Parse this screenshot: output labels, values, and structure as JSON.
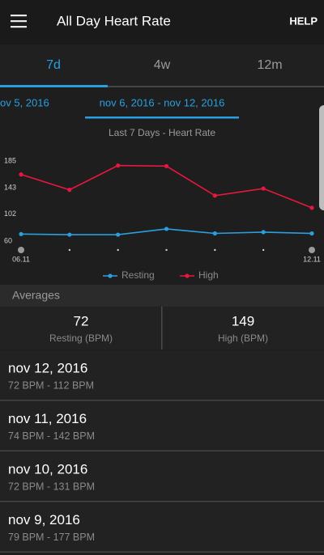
{
  "header": {
    "title": "All Day Heart Rate",
    "help": "HELP"
  },
  "tabs": [
    "7d",
    "4w",
    "12m"
  ],
  "date_range": {
    "previous": "ov 5, 2016",
    "current": "nov 6, 2016 - nov 12, 2016"
  },
  "chart_data": {
    "type": "line",
    "title": "Last 7 Days - Heart Rate",
    "categories": [
      "06.11",
      null,
      null,
      null,
      null,
      null,
      "12.11"
    ],
    "series": [
      {
        "name": "Resting",
        "color": "#2a9fe0",
        "values": [
          71,
          70,
          70,
          79,
          72,
          74,
          72
        ]
      },
      {
        "name": "High",
        "color": "#e8173f",
        "values": [
          164,
          140,
          178,
          177,
          131,
          142,
          112
        ]
      }
    ],
    "ylim": [
      60,
      185
    ],
    "yticks": [
      60,
      102,
      143,
      185
    ]
  },
  "averages": {
    "title": "Averages",
    "items": [
      {
        "value": 72,
        "label": "Resting (BPM)"
      },
      {
        "value": 149,
        "label": "High (BPM)"
      }
    ]
  },
  "days": [
    {
      "date": "nov 12, 2016",
      "range": "72 BPM - 112 BPM"
    },
    {
      "date": "nov 11, 2016",
      "range": "74 BPM - 142 BPM"
    },
    {
      "date": "nov 10, 2016",
      "range": "72 BPM - 131 BPM"
    },
    {
      "date": "nov 9, 2016",
      "range": "79 BPM - 177 BPM"
    }
  ]
}
